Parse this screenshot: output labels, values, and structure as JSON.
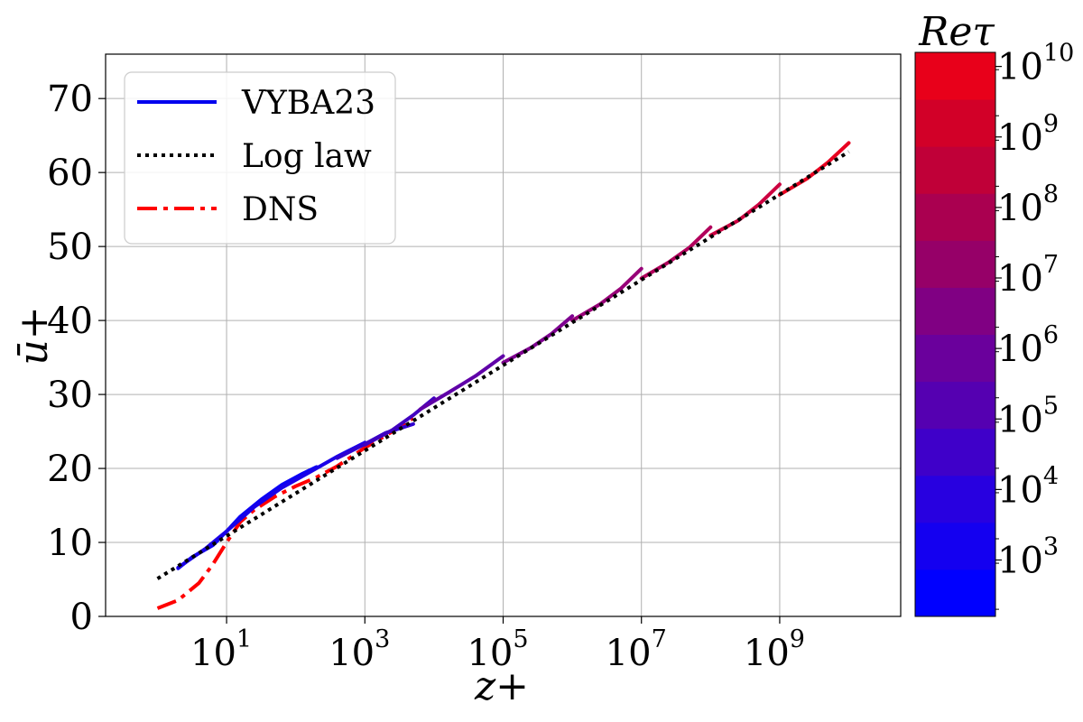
{
  "chart_data": {
    "type": "line",
    "x_scale": "log",
    "xlim_log10": [
      -0.75,
      10.75
    ],
    "ylim": [
      0,
      76
    ],
    "xlabel": "z+",
    "ylabel": "ū+",
    "x_ticks": [
      {
        "base": "10",
        "exp": "1",
        "log10": 1
      },
      {
        "base": "10",
        "exp": "3",
        "log10": 3
      },
      {
        "base": "10",
        "exp": "5",
        "log10": 5
      },
      {
        "base": "10",
        "exp": "7",
        "log10": 7
      },
      {
        "base": "10",
        "exp": "9",
        "log10": 9
      }
    ],
    "y_ticks": [
      0,
      10,
      20,
      30,
      40,
      50,
      60,
      70
    ],
    "grid": true,
    "legend": {
      "position": "top-left",
      "entries": [
        {
          "label": "VYBA23",
          "color": "#0000ee",
          "style": "solid"
        },
        {
          "label": "Log law",
          "color": "#000000",
          "style": "dotted"
        },
        {
          "label": "DNS",
          "color": "#ff0000",
          "style": "dashdot"
        }
      ]
    },
    "log_law": {
      "name": "Log law",
      "color": "#000000",
      "x_log10": [
        0,
        10
      ],
      "y": [
        5.1,
        62.8
      ]
    },
    "dns": {
      "name": "DNS",
      "color": "#ff0000",
      "points": [
        [
          0,
          1.1
        ],
        [
          0.3,
          2.2
        ],
        [
          0.6,
          4.5
        ],
        [
          0.8,
          7.0
        ],
        [
          1.0,
          10.0
        ],
        [
          1.2,
          12.8
        ],
        [
          1.4,
          14.4
        ],
        [
          1.7,
          16.2
        ],
        [
          2.0,
          17.6
        ],
        [
          2.3,
          18.8
        ],
        [
          2.6,
          20.3
        ],
        [
          3.0,
          22.8
        ],
        [
          3.4,
          25.0
        ],
        [
          3.7,
          26.8
        ]
      ]
    },
    "vyba23_series": [
      {
        "re_tau_log10": 2.3,
        "color": "#0a00f5",
        "points": [
          [
            0.3,
            6.5
          ],
          [
            0.5,
            8.0
          ],
          [
            0.8,
            9.6
          ],
          [
            1.0,
            11.5
          ],
          [
            1.2,
            13.5
          ],
          [
            1.5,
            15.8
          ],
          [
            1.8,
            17.8
          ],
          [
            2.1,
            19.3
          ],
          [
            2.3,
            20.2
          ]
        ]
      },
      {
        "re_tau_log10": 3.0,
        "color": "#1a00e8",
        "points": [
          [
            0.3,
            6.6
          ],
          [
            0.7,
            9.2
          ],
          [
            1.0,
            11.5
          ],
          [
            1.4,
            14.8
          ],
          [
            1.8,
            17.4
          ],
          [
            2.2,
            19.5
          ],
          [
            2.6,
            21.6
          ],
          [
            3.0,
            23.5
          ]
        ]
      },
      {
        "re_tau_log10": 3.7,
        "color": "#3000d0",
        "points": [
          [
            2.6,
            21.4
          ],
          [
            3.0,
            23.3
          ],
          [
            3.3,
            24.8
          ],
          [
            3.7,
            26.0
          ]
        ]
      },
      {
        "re_tau_log10": 4.0,
        "color": "#4000c0",
        "points": [
          [
            3.0,
            23.2
          ],
          [
            3.4,
            25.2
          ],
          [
            3.7,
            27.2
          ],
          [
            4.0,
            29.5
          ]
        ]
      },
      {
        "re_tau_log10": 5.0,
        "color": "#6000a8",
        "points": [
          [
            3.8,
            28.0
          ],
          [
            4.2,
            30.2
          ],
          [
            4.6,
            32.5
          ],
          [
            5.0,
            35.2
          ]
        ]
      },
      {
        "re_tau_log10": 6.0,
        "color": "#7e0090",
        "points": [
          [
            5.0,
            34.3
          ],
          [
            5.4,
            36.3
          ],
          [
            5.7,
            38.2
          ],
          [
            6.0,
            40.6
          ]
        ]
      },
      {
        "re_tau_log10": 7.0,
        "color": "#980078",
        "points": [
          [
            6.0,
            40.0
          ],
          [
            6.4,
            42.2
          ],
          [
            6.7,
            44.3
          ],
          [
            7.0,
            47.0
          ]
        ]
      },
      {
        "re_tau_log10": 8.0,
        "color": "#b2005c",
        "points": [
          [
            7.0,
            45.7
          ],
          [
            7.4,
            47.9
          ],
          [
            7.7,
            49.9
          ],
          [
            8.0,
            52.6
          ]
        ]
      },
      {
        "re_tau_log10": 9.0,
        "color": "#cc0040",
        "points": [
          [
            8.0,
            51.5
          ],
          [
            8.4,
            53.5
          ],
          [
            8.7,
            55.7
          ],
          [
            9.0,
            58.4
          ]
        ]
      },
      {
        "re_tau_log10": 10.0,
        "color": "#e80020",
        "points": [
          [
            9.0,
            57.0
          ],
          [
            9.4,
            59.2
          ],
          [
            9.7,
            61.4
          ],
          [
            10.0,
            64.0
          ]
        ]
      }
    ],
    "colorbar": {
      "title": "Reτ",
      "range_log10": [
        2.2,
        10.2
      ],
      "tick_labels": [
        {
          "base": "10",
          "exp": "3",
          "log10": 3
        },
        {
          "base": "10",
          "exp": "4",
          "log10": 4
        },
        {
          "base": "10",
          "exp": "5",
          "log10": 5
        },
        {
          "base": "10",
          "exp": "6",
          "log10": 6
        },
        {
          "base": "10",
          "exp": "7",
          "log10": 7
        },
        {
          "base": "10",
          "exp": "8",
          "log10": 8
        },
        {
          "base": "10",
          "exp": "9",
          "log10": 9
        },
        {
          "base": "10",
          "exp": "10",
          "log10": 10
        }
      ],
      "bands": [
        "#0000ff",
        "#1400f0",
        "#2800e0",
        "#3f00c9",
        "#5500b1",
        "#6a009c",
        "#800083",
        "#960068",
        "#aa0050",
        "#c00038",
        "#d20028",
        "#e8001a"
      ]
    }
  }
}
